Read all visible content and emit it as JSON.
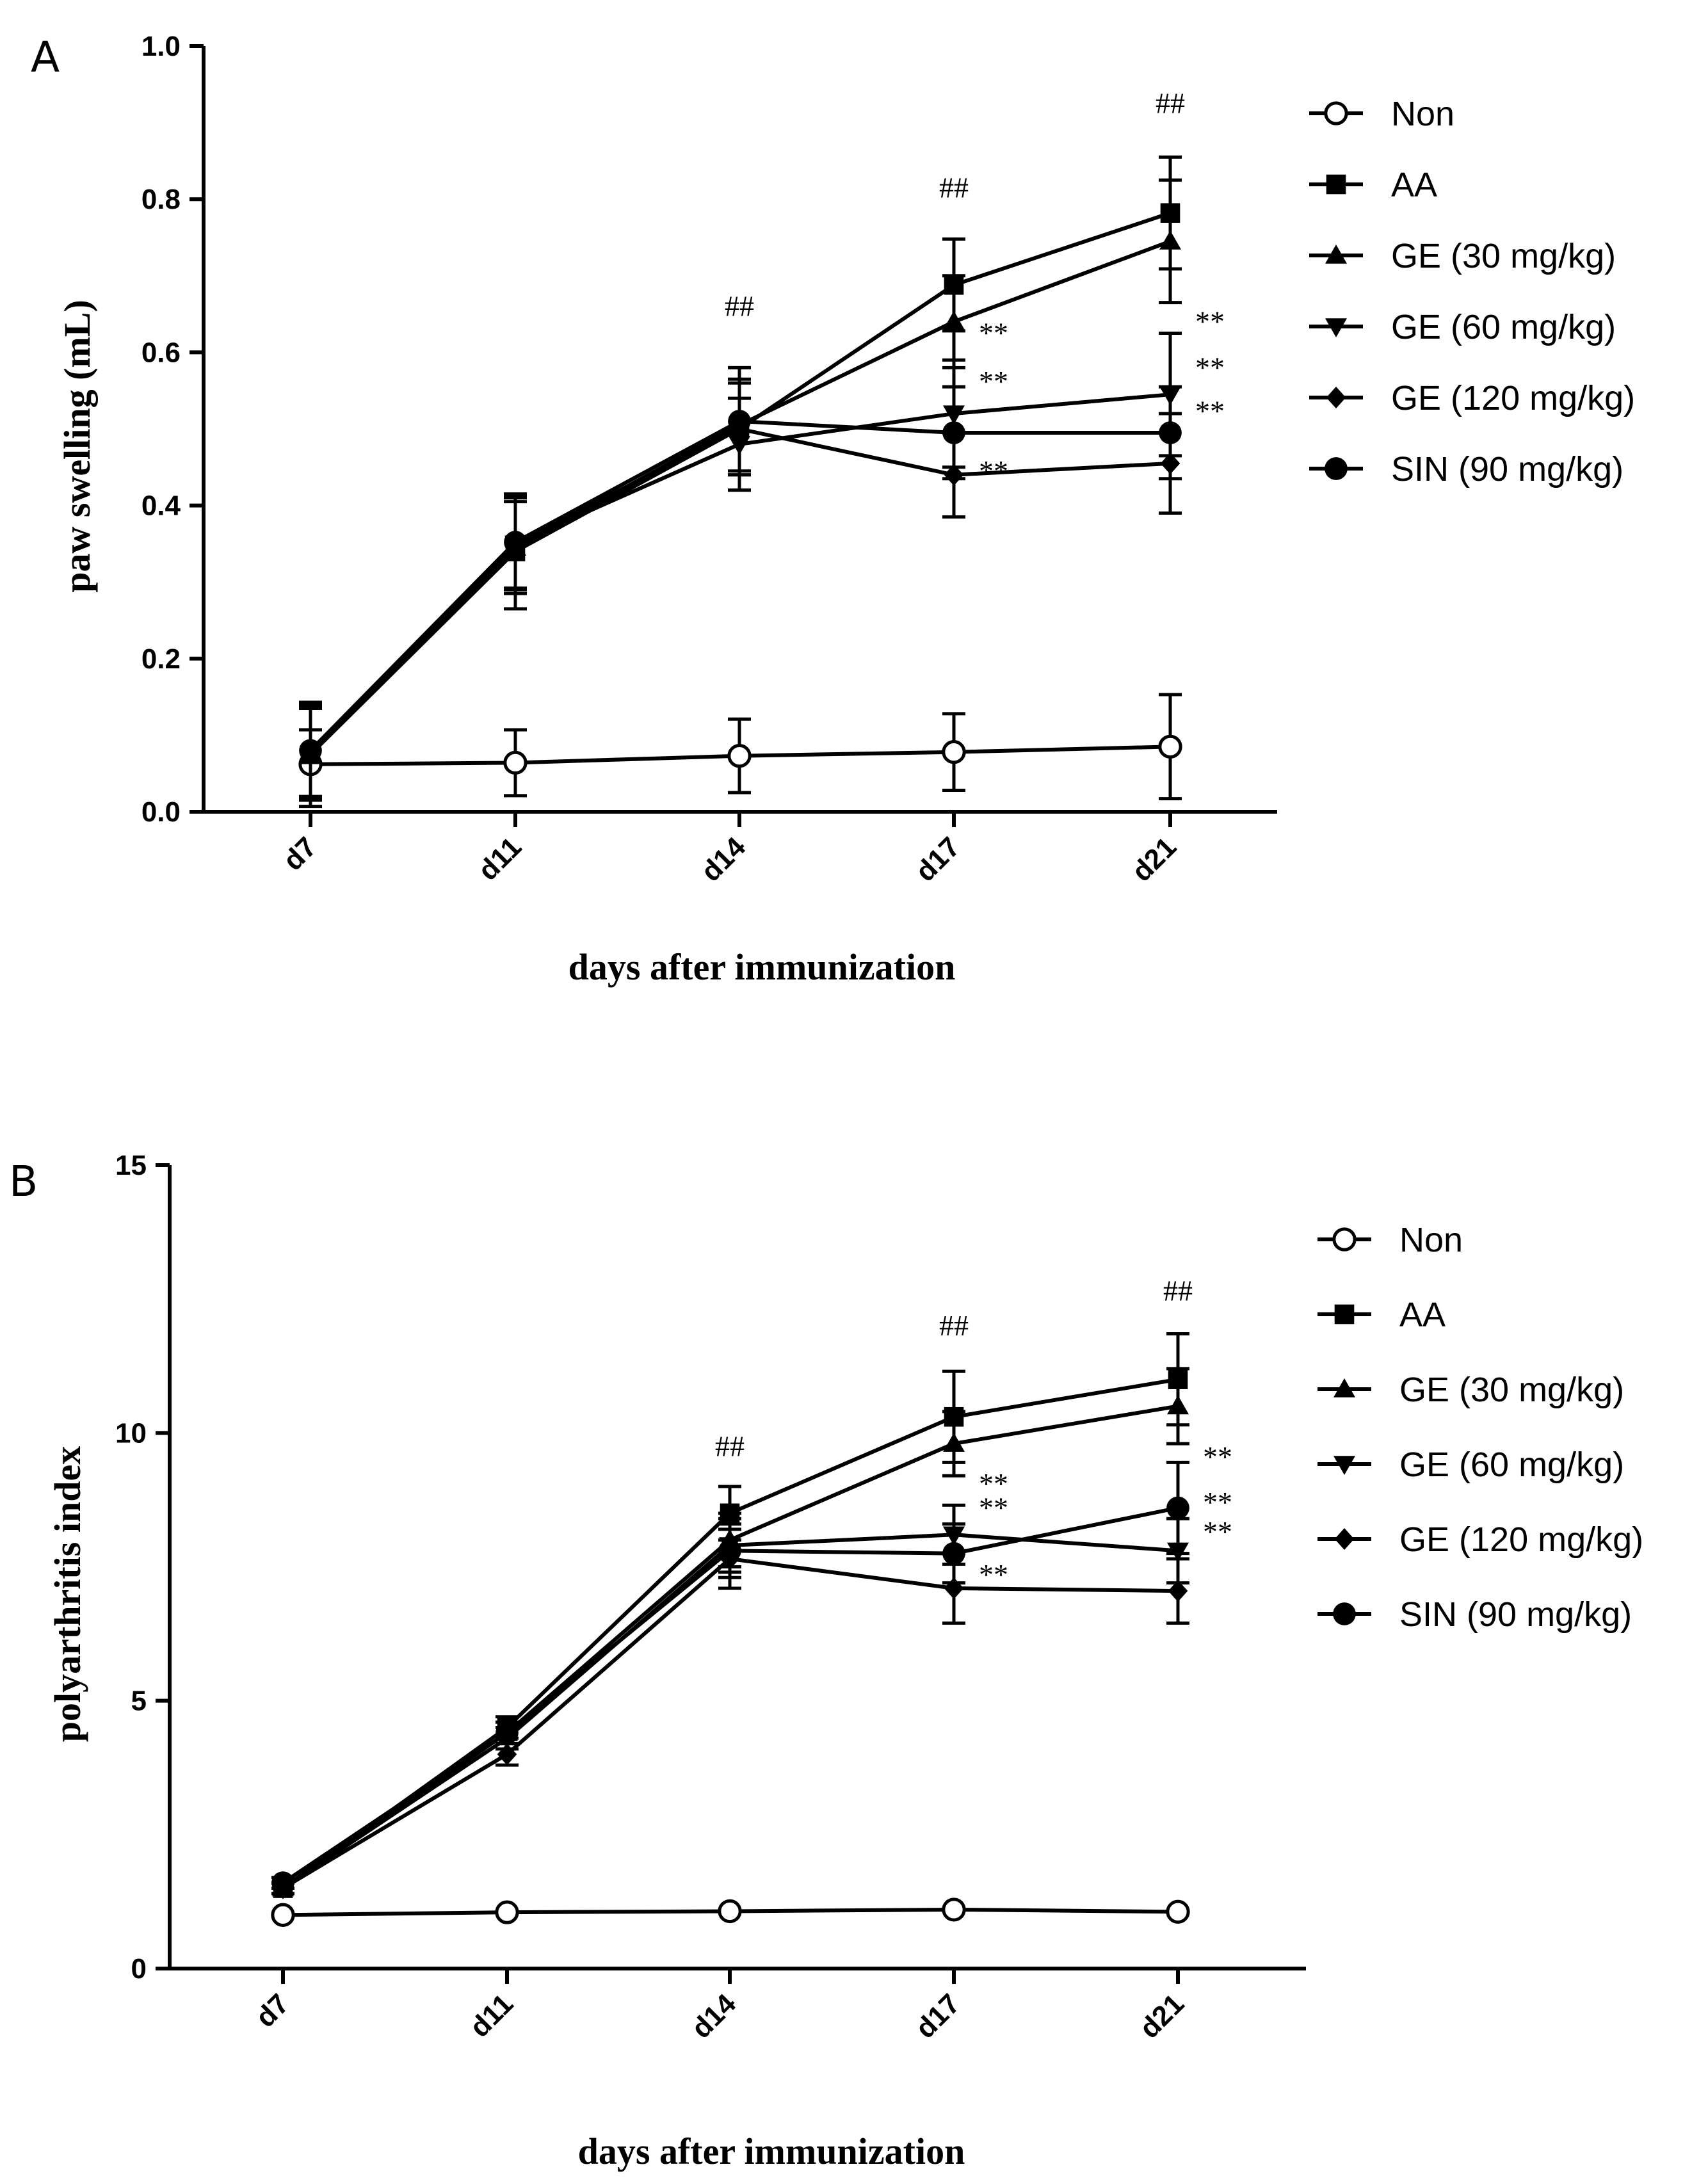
{
  "figure": {
    "panels": [
      "A",
      "B"
    ]
  },
  "legend_items": [
    {
      "label": "Non",
      "marker": "open-circle-icon"
    },
    {
      "label": "AA",
      "marker": "filled-square-icon"
    },
    {
      "label": "GE (30 mg/kg)",
      "marker": "triangle-up-icon"
    },
    {
      "label": "GE (60 mg/kg)",
      "marker": "triangle-down-icon"
    },
    {
      "label": "GE (120 mg/kg)",
      "marker": "diamond-icon"
    },
    {
      "label": "SIN (90 mg/kg)",
      "marker": "filled-circle-icon"
    }
  ],
  "chart_data": [
    {
      "type": "line",
      "panel": "A",
      "title": "",
      "xlabel": "days after immunization",
      "ylabel": "paw swelling (mL)",
      "categories": [
        "d7",
        "d11",
        "d14",
        "d17",
        "d21"
      ],
      "ylim": [
        0,
        1.0
      ],
      "yticks": [
        "0.0",
        "0.2",
        "0.4",
        "0.6",
        "0.8",
        "1.0"
      ],
      "yticks_values": [
        0,
        0.2,
        0.4,
        0.6,
        0.8,
        1.0
      ],
      "series": [
        {
          "name": "Non",
          "marker": "open-circle",
          "values": [
            0.062,
            0.064,
            0.073,
            0.078,
            0.085
          ],
          "errors": [
            0.045,
            0.043,
            0.048,
            0.05,
            0.068
          ]
        },
        {
          "name": "AA",
          "marker": "square",
          "values": [
            0.075,
            0.34,
            0.5,
            0.688,
            0.782
          ],
          "errors": [
            0.068,
            0.075,
            0.08,
            0.06,
            0.073
          ]
        },
        {
          "name": "GE (30 mg/kg)",
          "marker": "triangle-up",
          "values": [
            0.075,
            0.345,
            0.505,
            0.64,
            0.745
          ],
          "errors": [
            0.06,
            0.06,
            0.06,
            0.06,
            0.08
          ]
        },
        {
          "name": "GE (60 mg/kg)",
          "marker": "triangle-down",
          "values": [
            0.075,
            0.35,
            0.48,
            0.52,
            0.545
          ],
          "errors": [
            0.06,
            0.06,
            0.06,
            0.07,
            0.08
          ]
        },
        {
          "name": "GE (120 mg/kg)",
          "marker": "diamond",
          "values": [
            0.078,
            0.35,
            0.5,
            0.44,
            0.455
          ],
          "errors": [
            0.06,
            0.06,
            0.06,
            0.055,
            0.065
          ]
        },
        {
          "name": "SIN (90 mg/kg)",
          "marker": "filled-circle",
          "values": [
            0.08,
            0.352,
            0.51,
            0.495,
            0.495
          ],
          "errors": [
            0.06,
            0.06,
            0.07,
            0.06,
            0.06
          ]
        }
      ],
      "annotations": [
        {
          "text": "##",
          "x": "d14",
          "y": 0.66
        },
        {
          "text": "##",
          "x": "d17",
          "y": 0.815
        },
        {
          "text": "##",
          "x": "d21",
          "y": 0.925
        },
        {
          "text": "**",
          "x": "d17",
          "y": 0.625,
          "side": "right"
        },
        {
          "text": "**",
          "x": "d17",
          "y": 0.562,
          "side": "right"
        },
        {
          "text": "**",
          "x": "d17",
          "y": 0.445,
          "side": "right"
        },
        {
          "text": "**",
          "x": "d21",
          "y": 0.64,
          "side": "right"
        },
        {
          "text": "**",
          "x": "d21",
          "y": 0.58,
          "side": "right"
        },
        {
          "text": "**",
          "x": "d21",
          "y": 0.523,
          "side": "right"
        }
      ]
    },
    {
      "type": "line",
      "panel": "B",
      "title": "",
      "xlabel": "days after immunization",
      "ylabel": "polyarthritis index",
      "categories": [
        "d7",
        "d11",
        "d14",
        "d17",
        "d21"
      ],
      "ylim": [
        0,
        15
      ],
      "yticks": [
        "0",
        "5",
        "10",
        "15"
      ],
      "yticks_values": [
        0,
        5,
        10,
        15
      ],
      "series": [
        {
          "name": "Non",
          "marker": "open-circle",
          "values": [
            1.0,
            1.05,
            1.07,
            1.1,
            1.06
          ],
          "errors": [
            0,
            0,
            0,
            0,
            0
          ]
        },
        {
          "name": "AA",
          "marker": "square",
          "values": [
            1.5,
            4.5,
            8.5,
            10.3,
            11.0
          ],
          "errors": [
            0.1,
            0.2,
            0.5,
            0.85,
            0.85
          ]
        },
        {
          "name": "GE (30 mg/kg)",
          "marker": "triangle-up",
          "values": [
            1.5,
            4.4,
            8.0,
            9.8,
            10.5
          ],
          "errors": [
            0.1,
            0.2,
            0.5,
            0.6,
            0.7
          ]
        },
        {
          "name": "GE (60 mg/kg)",
          "marker": "triangle-down",
          "values": [
            1.5,
            4.3,
            7.9,
            8.1,
            7.8
          ],
          "errors": [
            0.1,
            0.2,
            0.5,
            0.55,
            0.6
          ]
        },
        {
          "name": "GE (120 mg/kg)",
          "marker": "diamond",
          "values": [
            1.5,
            4.0,
            7.65,
            7.1,
            7.05
          ],
          "errors": [
            0.1,
            0.2,
            0.55,
            0.65,
            0.6
          ]
        },
        {
          "name": "SIN (90 mg/kg)",
          "marker": "filled-circle",
          "values": [
            1.6,
            4.4,
            7.8,
            7.75,
            8.6
          ],
          "errors": [
            0.1,
            0.2,
            0.5,
            0.55,
            0.85
          ]
        }
      ],
      "annotations": [
        {
          "text": "##",
          "x": "d14",
          "y": 9.75
        },
        {
          "text": "##",
          "x": "d17",
          "y": 12.0
        },
        {
          "text": "##",
          "x": "d21",
          "y": 12.65
        },
        {
          "text": "**",
          "x": "d17",
          "y": 9.05,
          "side": "right"
        },
        {
          "text": "**",
          "x": "d17",
          "y": 8.6,
          "side": "right"
        },
        {
          "text": "**",
          "x": "d17",
          "y": 7.35,
          "side": "right"
        },
        {
          "text": "**",
          "x": "d21",
          "y": 9.55,
          "side": "right"
        },
        {
          "text": "**",
          "x": "d21",
          "y": 8.7,
          "side": "right"
        },
        {
          "text": "**",
          "x": "d21",
          "y": 8.15,
          "side": "right"
        }
      ]
    }
  ]
}
